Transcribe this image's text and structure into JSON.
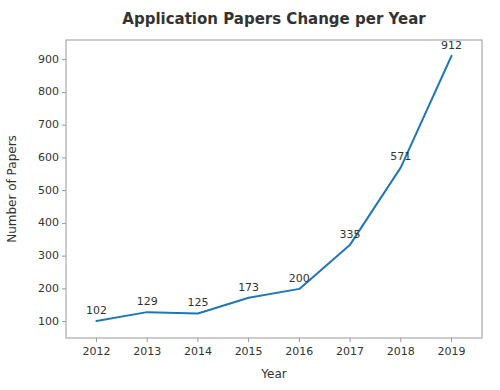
{
  "chart_data": {
    "type": "line",
    "title": "Application Papers Change per Year",
    "x_label": "Year",
    "y_label": "Number of Papers",
    "x": [
      2012,
      2013,
      2014,
      2015,
      2016,
      2017,
      2018,
      2019
    ],
    "values": [
      102,
      129,
      125,
      173,
      200,
      335,
      571,
      912
    ],
    "color": "#1f77b4",
    "xlim": [
      2011.4,
      2019.6
    ],
    "xticks": [
      2012,
      2013,
      2014,
      2015,
      2016,
      2017,
      2018,
      2019
    ],
    "ylim": [
      50,
      960
    ],
    "yticks": [
      100,
      200,
      300,
      400,
      500,
      600,
      700,
      800,
      900
    ],
    "grid": false,
    "data_labels": true
  }
}
